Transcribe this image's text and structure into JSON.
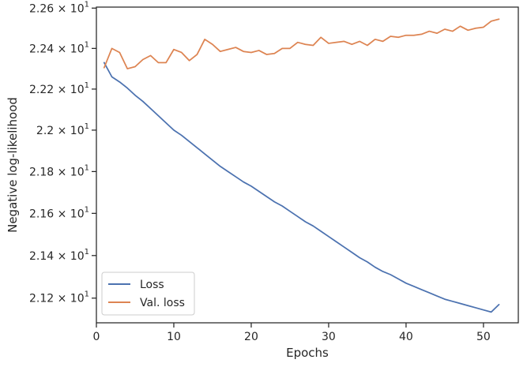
{
  "chart_data": {
    "type": "line",
    "xlabel": "Epochs",
    "ylabel": "Negative log-likelihood",
    "xlim": [
      0,
      54.5
    ],
    "ylim": [
      21.085,
      22.605
    ],
    "xticks": [
      0,
      10,
      20,
      30,
      40,
      50
    ],
    "yticks": [
      {
        "value": 21.2,
        "mantissa": "2.12",
        "base": "10",
        "exp": "1"
      },
      {
        "value": 21.4,
        "mantissa": "2.14",
        "base": "10",
        "exp": "1"
      },
      {
        "value": 21.6,
        "mantissa": "2.16",
        "base": "10",
        "exp": "1"
      },
      {
        "value": 21.8,
        "mantissa": "2.18",
        "base": "10",
        "exp": "1"
      },
      {
        "value": 22.0,
        "mantissa": "2.2",
        "base": "10",
        "exp": "1"
      },
      {
        "value": 22.2,
        "mantissa": "2.22",
        "base": "10",
        "exp": "1"
      },
      {
        "value": 22.4,
        "mantissa": "2.24",
        "base": "10",
        "exp": "1"
      },
      {
        "value": 22.6,
        "mantissa": "2.26",
        "base": "10",
        "exp": "1"
      }
    ],
    "yscale": "log",
    "grid": false,
    "legend_position": "lower-left",
    "x": [
      1,
      2,
      3,
      4,
      5,
      6,
      7,
      8,
      9,
      10,
      11,
      12,
      13,
      14,
      15,
      16,
      17,
      18,
      19,
      20,
      21,
      22,
      23,
      24,
      25,
      26,
      27,
      28,
      29,
      30,
      31,
      32,
      33,
      34,
      35,
      36,
      37,
      38,
      39,
      40,
      41,
      42,
      43,
      44,
      45,
      46,
      47,
      48,
      49,
      50,
      51,
      52
    ],
    "series": [
      {
        "name": "Loss",
        "color": "#4c72b0",
        "values": [
          22.33,
          22.26,
          22.235,
          22.205,
          22.17,
          22.14,
          22.105,
          22.07,
          22.035,
          22.0,
          21.975,
          21.945,
          21.915,
          21.885,
          21.855,
          21.825,
          21.8,
          21.775,
          21.75,
          21.73,
          21.705,
          21.68,
          21.655,
          21.635,
          21.61,
          21.585,
          21.56,
          21.54,
          21.515,
          21.49,
          21.465,
          21.44,
          21.415,
          21.39,
          21.37,
          21.345,
          21.325,
          21.31,
          21.29,
          21.27,
          21.255,
          21.24,
          21.225,
          21.21,
          21.195,
          21.185,
          21.175,
          21.165,
          21.155,
          21.145,
          21.135,
          21.17
        ]
      },
      {
        "name": "Val. loss",
        "color": "#dd8452",
        "values": [
          22.305,
          22.4,
          22.38,
          22.3,
          22.31,
          22.345,
          22.365,
          22.33,
          22.33,
          22.395,
          22.38,
          22.34,
          22.37,
          22.445,
          22.42,
          22.385,
          22.395,
          22.405,
          22.385,
          22.38,
          22.39,
          22.37,
          22.375,
          22.4,
          22.4,
          22.43,
          22.42,
          22.415,
          22.455,
          22.425,
          22.43,
          22.435,
          22.42,
          22.435,
          22.415,
          22.445,
          22.435,
          22.46,
          22.455,
          22.465,
          22.465,
          22.47,
          22.485,
          22.475,
          22.495,
          22.485,
          22.51,
          22.49,
          22.5,
          22.505,
          22.535,
          22.545
        ]
      }
    ]
  }
}
